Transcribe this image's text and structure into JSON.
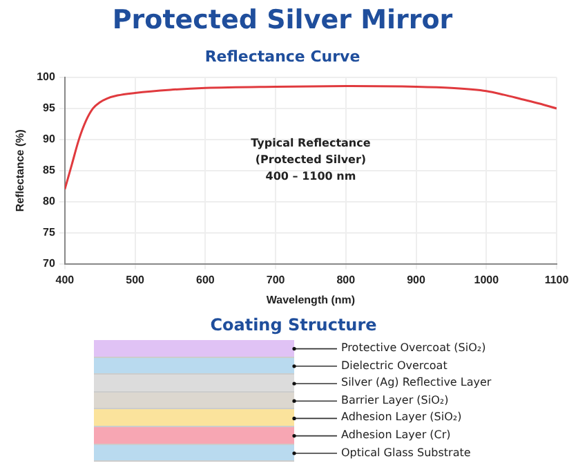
{
  "chart_data": [
    {
      "type": "line",
      "title": "Protected Silver Mirror",
      "subtitle": "Reflectance Curve",
      "xlabel": "Wavelength (nm)",
      "ylabel": "Reflectance (%)",
      "annotations": [
        "Typical Reflectance",
        "(Protected Silver)",
        "400 – 1100 nm"
      ],
      "series": [
        {
          "color": "#e03a3e",
          "x": [
            400,
            410,
            420,
            430,
            440,
            450,
            460,
            475,
            500,
            550,
            600,
            700,
            800,
            900,
            950,
            1000,
            1025,
            1050,
            1075,
            1100
          ],
          "values": [
            82,
            86,
            90,
            93,
            95,
            96,
            96.6,
            97.1,
            97.5,
            98,
            98.3,
            98.5,
            98.6,
            98.5,
            98.3,
            97.8,
            97.2,
            96.5,
            95.8,
            95
          ]
        }
      ],
      "xlim": [
        400,
        1100
      ],
      "xticks": [
        400,
        500,
        600,
        700,
        800,
        900,
        1000,
        1100
      ],
      "ylim": [
        70,
        100
      ],
      "yticks": [
        70,
        75,
        80,
        85,
        90,
        95,
        100
      ],
      "grid": true,
      "legend": false,
      "marker": "none",
      "line_style": "solid"
    },
    {
      "type": "other",
      "title": "Coating Structure",
      "annotations": [
        "Protective Overcoat (SiO₂)",
        "Dielectric Overcoat",
        "Silver (Ag) Reflective Layer",
        "Barrier Layer (SiO₂)",
        "Adhesion Layer (SiO₂)",
        "Adhesion Layer (Cr)",
        "Optical Glass Substrate"
      ]
    }
  ]
}
